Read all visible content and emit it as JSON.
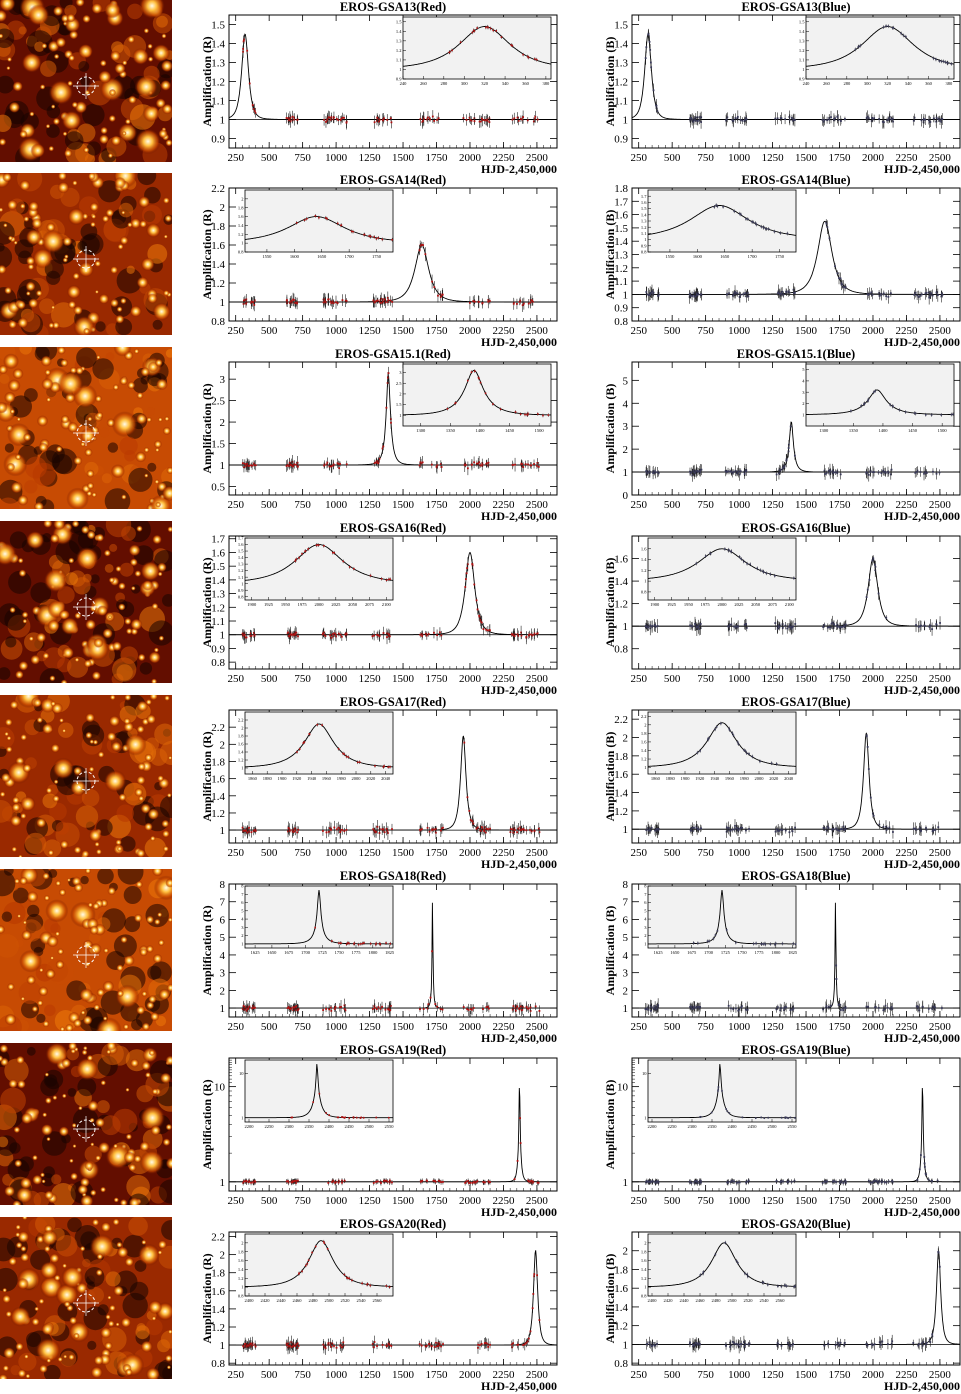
{
  "figure": {
    "x_axis_label": "HJD-2,450,000",
    "y_axis_label_red": "Amplification (R)",
    "y_axis_label_blue": "Amplification (B)",
    "panel_fill": "#f2f2f2",
    "finder_colormap": [
      "#000000",
      "#5a0a00",
      "#b53600",
      "#f07d0a",
      "#ffc84a",
      "#fff6d6"
    ],
    "finder_marker": "circle-with-crosshair"
  },
  "chart_data": [
    {
      "type": "scatter",
      "title": "EROS-GSA13(Red)",
      "band": "R",
      "xlim": [
        200,
        2650
      ],
      "ylim": [
        0.85,
        1.55
      ],
      "yscale": "linear",
      "xticks": [
        250,
        500,
        750,
        1000,
        1250,
        1500,
        1750,
        2000,
        2250,
        2500
      ],
      "yticks": [
        0.9,
        1,
        1.1,
        1.2,
        1.3,
        1.4,
        1.5
      ],
      "event": {
        "t0": 320,
        "tE": 35,
        "amax": 1.45
      },
      "baseline": 1.0,
      "inset": {
        "position": "top-right",
        "xlim": [
          240,
          385
        ],
        "ylim": [
          0.9,
          1.55
        ],
        "xticks": [
          240,
          260,
          280,
          300,
          320,
          340,
          360,
          380
        ],
        "yticks": [
          0.9,
          1,
          1.1,
          1.2,
          1.3,
          1.4,
          1.5
        ]
      }
    },
    {
      "type": "scatter",
      "title": "EROS-GSA13(Blue)",
      "band": "B",
      "xlim": [
        200,
        2650
      ],
      "ylim": [
        0.85,
        1.55
      ],
      "yscale": "linear",
      "xticks": [
        250,
        500,
        750,
        1000,
        1250,
        1500,
        1750,
        2000,
        2250,
        2500
      ],
      "yticks": [
        0.9,
        1,
        1.1,
        1.2,
        1.3,
        1.4,
        1.5
      ],
      "event": {
        "t0": 320,
        "tE": 35,
        "amax": 1.45
      },
      "baseline": 1.0,
      "inset": {
        "position": "top-right",
        "xlim": [
          240,
          385
        ],
        "ylim": [
          0.9,
          1.55
        ],
        "xticks": [
          240,
          260,
          280,
          300,
          320,
          340,
          360,
          380
        ],
        "yticks": [
          0.9,
          1,
          1.1,
          1.2,
          1.3,
          1.4,
          1.5
        ]
      }
    },
    {
      "type": "scatter",
      "title": "EROS-GSA14(Red)",
      "band": "R",
      "xlim": [
        200,
        2650
      ],
      "ylim": [
        0.8,
        2.2
      ],
      "yscale": "linear",
      "xticks": [
        250,
        500,
        750,
        1000,
        1250,
        1500,
        1750,
        2000,
        2250,
        2500
      ],
      "yticks": [
        0.8,
        1,
        1.2,
        1.4,
        1.6,
        1.8,
        2,
        2.2
      ],
      "event": {
        "t0": 1640,
        "tE": 80,
        "amax": 1.6
      },
      "baseline": 1.0,
      "inset": {
        "position": "top-left",
        "xlim": [
          1510,
          1780
        ],
        "ylim": [
          0.8,
          2.2
        ],
        "xticks": [
          1550,
          1600,
          1650,
          1700,
          1750
        ],
        "yticks": [
          0.8,
          1,
          1.2,
          1.4,
          1.6,
          1.8,
          2
        ]
      }
    },
    {
      "type": "scatter",
      "title": "EROS-GSA14(Blue)",
      "band": "B",
      "xlim": [
        200,
        2650
      ],
      "ylim": [
        0.8,
        1.8
      ],
      "yscale": "linear",
      "xticks": [
        250,
        500,
        750,
        1000,
        1250,
        1500,
        1750,
        2000,
        2250,
        2500
      ],
      "yticks": [
        0.8,
        0.9,
        1,
        1.1,
        1.2,
        1.3,
        1.4,
        1.5,
        1.6,
        1.7,
        1.8
      ],
      "event": {
        "t0": 1640,
        "tE": 80,
        "amax": 1.55
      },
      "baseline": 1.0,
      "inset": {
        "position": "top-left",
        "xlim": [
          1510,
          1780
        ],
        "ylim": [
          0.8,
          1.8
        ],
        "xticks": [
          1550,
          1600,
          1650,
          1700,
          1750
        ],
        "yticks": [
          0.8,
          0.9,
          1,
          1.1,
          1.2,
          1.3,
          1.4,
          1.5,
          1.6,
          1.7
        ]
      }
    },
    {
      "type": "scatter",
      "title": "EROS-GSA15.1(Red)",
      "band": "R",
      "xlim": [
        200,
        2650
      ],
      "ylim": [
        0.3,
        3.4
      ],
      "yscale": "linear",
      "xticks": [
        250,
        500,
        750,
        1000,
        1250,
        1500,
        1750,
        2000,
        2250,
        2500
      ],
      "yticks": [
        0.5,
        1,
        1.5,
        2,
        2.5,
        3
      ],
      "event": {
        "t0": 1390,
        "tE": 45,
        "amax": 3.1
      },
      "baseline": 1.0,
      "inset": {
        "position": "top-right",
        "xlim": [
          1270,
          1520
        ],
        "ylim": [
          0.5,
          3.4
        ],
        "xticks": [
          1300,
          1350,
          1400,
          1450,
          1500
        ],
        "yticks": [
          1,
          1.5,
          2,
          2.5,
          3
        ]
      }
    },
    {
      "type": "scatter",
      "title": "EROS-GSA15.1(Blue)",
      "band": "B",
      "xlim": [
        200,
        2650
      ],
      "ylim": [
        0,
        5.8
      ],
      "yscale": "linear",
      "xticks": [
        250,
        500,
        750,
        1000,
        1250,
        1500,
        1750,
        2000,
        2250,
        2500
      ],
      "yticks": [
        0,
        1,
        2,
        3,
        4,
        5
      ],
      "event": {
        "t0": 1390,
        "tE": 45,
        "amax": 3.2
      },
      "baseline": 1.0,
      "inset": {
        "position": "top-right",
        "xlim": [
          1270,
          1520
        ],
        "ylim": [
          0,
          5.5
        ],
        "xticks": [
          1300,
          1350,
          1400,
          1450,
          1500
        ],
        "yticks": [
          1,
          2,
          3,
          4,
          5
        ]
      }
    },
    {
      "type": "scatter",
      "title": "EROS-GSA16(Red)",
      "band": "R",
      "xlim": [
        200,
        2650
      ],
      "ylim": [
        0.75,
        1.72
      ],
      "yscale": "linear",
      "xticks": [
        250,
        500,
        750,
        1000,
        1250,
        1500,
        1750,
        2000,
        2250,
        2500
      ],
      "yticks": [
        0.8,
        0.9,
        1,
        1.1,
        1.2,
        1.3,
        1.4,
        1.5,
        1.6,
        1.7
      ],
      "event": {
        "t0": 2000,
        "tE": 55,
        "amax": 1.6
      },
      "baseline": 1.0,
      "inset": {
        "position": "top-left",
        "xlim": [
          1890,
          2110
        ],
        "ylim": [
          0.75,
          1.7
        ],
        "xticks": [
          1900,
          1925,
          1950,
          1975,
          2000,
          2025,
          2050,
          2075,
          2100
        ],
        "yticks": [
          0.8,
          0.9,
          1,
          1.1,
          1.2,
          1.3,
          1.4,
          1.5,
          1.6,
          1.7
        ]
      }
    },
    {
      "type": "scatter",
      "title": "EROS-GSA16(Blue)",
      "band": "B",
      "xlim": [
        200,
        2650
      ],
      "ylim": [
        0.62,
        1.8
      ],
      "yscale": "linear",
      "xticks": [
        250,
        500,
        750,
        1000,
        1250,
        1500,
        1750,
        2000,
        2250,
        2500
      ],
      "yticks": [
        0.8,
        1,
        1.2,
        1.4,
        1.6
      ],
      "event": {
        "t0": 2000,
        "tE": 55,
        "amax": 1.6
      },
      "baseline": 1.0,
      "inset": {
        "position": "top-left",
        "xlim": [
          1890,
          2110
        ],
        "ylim": [
          0.65,
          1.8
        ],
        "xticks": [
          1900,
          1925,
          1950,
          1975,
          2000,
          2025,
          2050,
          2075,
          2100
        ],
        "yticks": [
          0.8,
          1,
          1.2,
          1.4,
          1.6
        ]
      }
    },
    {
      "type": "scatter",
      "title": "EROS-GSA17(Red)",
      "band": "R",
      "xlim": [
        200,
        2650
      ],
      "ylim": [
        0.85,
        2.4
      ],
      "yscale": "linear",
      "xticks": [
        250,
        500,
        750,
        1000,
        1250,
        1500,
        1750,
        2000,
        2250,
        2500
      ],
      "yticks": [
        1,
        1.2,
        1.4,
        1.6,
        1.8,
        2,
        2.2
      ],
      "event": {
        "t0": 1950,
        "tE": 40,
        "amax": 2.1
      },
      "baseline": 1.0,
      "inset": {
        "position": "top-left",
        "xlim": [
          1850,
          2050
        ],
        "ylim": [
          0.85,
          2.4
        ],
        "xticks": [
          1860,
          1880,
          1900,
          1920,
          1940,
          1960,
          1980,
          2000,
          2020,
          2040
        ],
        "yticks": [
          1,
          1.2,
          1.4,
          1.6,
          1.8,
          2,
          2.2
        ]
      }
    },
    {
      "type": "scatter",
      "title": "EROS-GSA17(Blue)",
      "band": "B",
      "xlim": [
        200,
        2650
      ],
      "ylim": [
        0.85,
        2.3
      ],
      "yscale": "linear",
      "xticks": [
        250,
        500,
        750,
        1000,
        1250,
        1500,
        1750,
        2000,
        2250,
        2500
      ],
      "yticks": [
        1,
        1.2,
        1.4,
        1.6,
        1.8,
        2,
        2.2
      ],
      "event": {
        "t0": 1950,
        "tE": 40,
        "amax": 2.05
      },
      "baseline": 1.0,
      "inset": {
        "position": "top-left",
        "xlim": [
          1850,
          2050
        ],
        "ylim": [
          0.85,
          2.3
        ],
        "xticks": [
          1860,
          1880,
          1900,
          1920,
          1940,
          1960,
          1980,
          2000,
          2020,
          2040
        ],
        "yticks": [
          0.8,
          1,
          1.2,
          1.4,
          1.6,
          1.8,
          2,
          2.2
        ]
      }
    },
    {
      "type": "scatter",
      "title": "EROS-GSA18(Red)",
      "band": "R",
      "xlim": [
        200,
        2650
      ],
      "ylim": [
        0.5,
        8
      ],
      "yscale": "linear",
      "xticks": [
        250,
        500,
        750,
        1000,
        1250,
        1500,
        1750,
        2000,
        2250,
        2500
      ],
      "yticks": [
        1,
        2,
        3,
        4,
        5,
        6,
        7,
        8
      ],
      "event": {
        "t0": 1720,
        "tE": 18,
        "amax": 7.5
      },
      "baseline": 1.0,
      "inset": {
        "position": "top-left",
        "xlim": [
          1610,
          1830
        ],
        "ylim": [
          0.5,
          8
        ],
        "xticks": [
          1625,
          1650,
          1675,
          1700,
          1725,
          1750,
          1775,
          1800,
          1825
        ],
        "yticks": [
          1,
          2,
          3,
          4,
          5,
          6,
          7,
          8
        ]
      }
    },
    {
      "type": "scatter",
      "title": "EROS-GSA18(Blue)",
      "band": "B",
      "xlim": [
        200,
        2650
      ],
      "ylim": [
        0.5,
        8
      ],
      "yscale": "linear",
      "xticks": [
        250,
        500,
        750,
        1000,
        1250,
        1500,
        1750,
        2000,
        2250,
        2500
      ],
      "yticks": [
        1,
        2,
        3,
        4,
        5,
        6,
        7,
        8
      ],
      "event": {
        "t0": 1720,
        "tE": 18,
        "amax": 7.5
      },
      "baseline": 1.0,
      "inset": {
        "position": "top-left",
        "xlim": [
          1610,
          1830
        ],
        "ylim": [
          0.5,
          8
        ],
        "xticks": [
          1625,
          1650,
          1675,
          1700,
          1725,
          1750,
          1775,
          1800,
          1825
        ],
        "yticks": [
          1,
          2,
          3,
          4,
          5,
          6,
          7,
          8
        ]
      }
    },
    {
      "type": "scatter",
      "title": "EROS-GSA19(Red)",
      "band": "R",
      "xlim": [
        200,
        2650
      ],
      "ylim": [
        0.8,
        20
      ],
      "yscale": "log",
      "xticks": [
        250,
        500,
        750,
        1000,
        1250,
        1500,
        1750,
        2000,
        2250,
        2500
      ],
      "yticks": [
        1,
        10
      ],
      "event": {
        "t0": 2370,
        "tE": 20,
        "amax": 18
      },
      "baseline": 1.0,
      "inset": {
        "position": "top-left",
        "xlim": [
          2190,
          2560
        ],
        "ylim": [
          0.8,
          20
        ],
        "xticks": [
          2200,
          2250,
          2300,
          2350,
          2400,
          2450,
          2500,
          2550
        ],
        "yticks": [
          1,
          10
        ]
      }
    },
    {
      "type": "scatter",
      "title": "EROS-GSA19(Blue)",
      "band": "B",
      "xlim": [
        200,
        2650
      ],
      "ylim": [
        0.8,
        20
      ],
      "yscale": "log",
      "xticks": [
        250,
        500,
        750,
        1000,
        1250,
        1500,
        1750,
        2000,
        2250,
        2500
      ],
      "yticks": [
        1,
        10
      ],
      "event": {
        "t0": 2370,
        "tE": 20,
        "amax": 18
      },
      "baseline": 1.0,
      "inset": {
        "position": "top-left",
        "xlim": [
          2190,
          2560
        ],
        "ylim": [
          0.8,
          20
        ],
        "xticks": [
          2200,
          2250,
          2300,
          2350,
          2400,
          2450,
          2500,
          2550
        ],
        "yticks": [
          1,
          10
        ]
      }
    },
    {
      "type": "scatter",
      "title": "EROS-GSA20(Red)",
      "band": "R",
      "xlim": [
        200,
        2650
      ],
      "ylim": [
        0.78,
        2.25
      ],
      "yscale": "linear",
      "xticks": [
        250,
        500,
        750,
        1000,
        1250,
        1500,
        1750,
        2000,
        2250,
        2500
      ],
      "yticks": [
        0.8,
        1,
        1.2,
        1.4,
        1.6,
        1.8,
        2,
        2.2
      ],
      "event": {
        "t0": 2490,
        "tE": 30,
        "amax": 2.05
      },
      "baseline": 1.0,
      "inset": {
        "position": "top-left",
        "xlim": [
          2395,
          2580
        ],
        "ylim": [
          0.8,
          2.2
        ],
        "xticks": [
          2400,
          2420,
          2440,
          2460,
          2480,
          2500,
          2520,
          2540,
          2560
        ],
        "yticks": [
          0.8,
          1,
          1.2,
          1.4,
          1.6,
          1.8,
          2
        ]
      }
    },
    {
      "type": "scatter",
      "title": "EROS-GSA20(Blue)",
      "band": "B",
      "xlim": [
        200,
        2650
      ],
      "ylim": [
        0.78,
        2.2
      ],
      "yscale": "linear",
      "xticks": [
        250,
        500,
        750,
        1000,
        1250,
        1500,
        1750,
        2000,
        2250,
        2500
      ],
      "yticks": [
        0.8,
        1,
        1.2,
        1.4,
        1.6,
        1.8,
        2
      ],
      "event": {
        "t0": 2490,
        "tE": 30,
        "amax": 2.0
      },
      "baseline": 1.0,
      "inset": {
        "position": "top-left",
        "xlim": [
          2395,
          2580
        ],
        "ylim": [
          0.8,
          2.2
        ],
        "xticks": [
          2400,
          2420,
          2440,
          2460,
          2480,
          2500,
          2520,
          2540,
          2560
        ],
        "yticks": [
          0.8,
          1,
          1.2,
          1.4,
          1.6,
          1.8,
          2
        ]
      }
    }
  ]
}
